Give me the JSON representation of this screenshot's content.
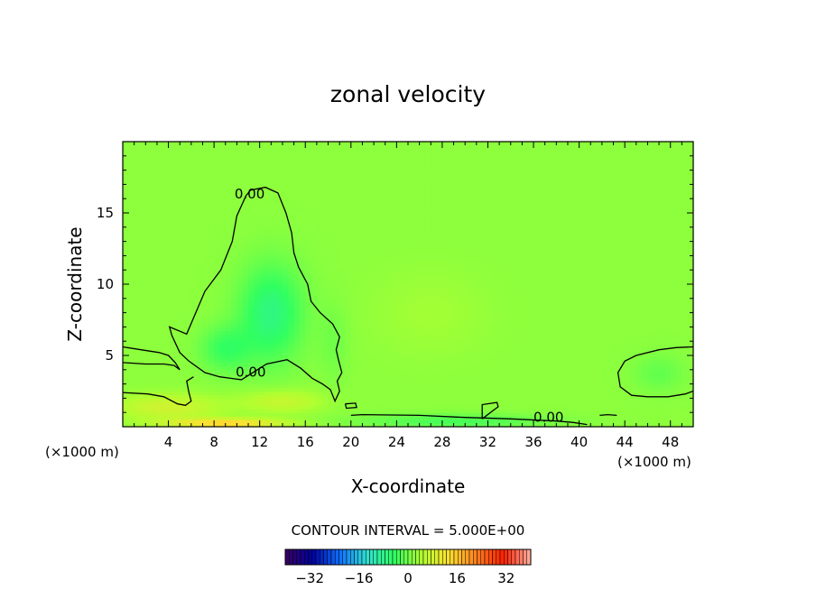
{
  "chart_data": {
    "type": "heatmap",
    "title": "zonal velocity",
    "xlabel": "X-coordinate",
    "ylabel": "Z-coordinate",
    "x_unit_left": "(×1000 m)",
    "x_unit_right": "(×1000 m)",
    "xlim": [
      0,
      50
    ],
    "ylim": [
      0,
      20
    ],
    "x_ticks": [
      4,
      8,
      12,
      16,
      20,
      24,
      28,
      32,
      36,
      40,
      44,
      48
    ],
    "y_ticks": [
      5,
      10,
      15
    ],
    "field_range": [
      -40,
      40
    ],
    "background_value": 2,
    "colorbar": {
      "ticks": [
        -32,
        -16,
        0,
        16,
        32
      ],
      "min": -40,
      "max": 40,
      "stops": [
        "#3a0060",
        "#0000a0",
        "#1070ff",
        "#30e0d0",
        "#30ff60",
        "#b0ff30",
        "#ffe030",
        "#ff8020",
        "#ff2000",
        "#ffb0a0"
      ]
    },
    "contour_interval_label": "CONTOUR INTERVAL = 5.000E+00",
    "contour_labels": [
      {
        "text": "0.00",
        "x": 9.8,
        "y": 16.0
      },
      {
        "text": "0.00",
        "x": 9.9,
        "y": 3.5
      },
      {
        "text": "0.00",
        "x": 36.0,
        "y": 0.35
      }
    ],
    "zero_contours": [
      [
        [
          10.8,
          16.2
        ],
        [
          11.2,
          16.6
        ],
        [
          12.5,
          16.8
        ],
        [
          13.6,
          16.4
        ],
        [
          14.3,
          15.0
        ],
        [
          14.8,
          13.6
        ],
        [
          15.0,
          12.2
        ],
        [
          15.4,
          11.2
        ],
        [
          16.2,
          10.0
        ],
        [
          16.5,
          8.8
        ],
        [
          17.3,
          8.0
        ],
        [
          18.4,
          7.2
        ],
        [
          19.0,
          6.3
        ],
        [
          18.7,
          5.4
        ],
        [
          18.9,
          4.7
        ],
        [
          19.2,
          3.8
        ],
        [
          18.8,
          3.2
        ],
        [
          19.0,
          2.5
        ],
        [
          18.6,
          1.8
        ],
        [
          18.2,
          2.6
        ],
        [
          17.5,
          3.0
        ],
        [
          16.6,
          3.4
        ],
        [
          15.6,
          4.1
        ],
        [
          14.4,
          4.7
        ],
        [
          12.6,
          4.4
        ],
        [
          10.4,
          3.3
        ],
        [
          8.5,
          3.5
        ],
        [
          7.2,
          3.8
        ],
        [
          5.8,
          4.6
        ],
        [
          5.0,
          5.2
        ],
        [
          4.3,
          6.4
        ],
        [
          4.1,
          7.0
        ],
        [
          5.6,
          6.5
        ],
        [
          7.2,
          9.5
        ],
        [
          8.6,
          11.0
        ],
        [
          9.6,
          13.0
        ],
        [
          10.0,
          14.8
        ],
        [
          10.8,
          16.2
        ]
      ],
      [
        [
          0.0,
          5.6
        ],
        [
          1.6,
          5.4
        ],
        [
          3.2,
          5.2
        ],
        [
          4.0,
          5.0
        ],
        [
          4.6,
          4.5
        ],
        [
          5.0,
          4.0
        ],
        [
          4.5,
          4.3
        ],
        [
          3.6,
          4.4
        ],
        [
          2.0,
          4.4
        ],
        [
          0.0,
          4.5
        ]
      ],
      [
        [
          0.0,
          2.4
        ],
        [
          2.2,
          2.3
        ],
        [
          3.6,
          2.1
        ],
        [
          4.8,
          1.6
        ],
        [
          5.5,
          1.5
        ],
        [
          6.0,
          1.8
        ],
        [
          5.8,
          2.4
        ],
        [
          5.6,
          3.2
        ],
        [
          6.2,
          3.5
        ]
      ],
      [
        [
          20.0,
          0.8
        ],
        [
          21.0,
          0.85
        ],
        [
          26.0,
          0.8
        ],
        [
          30.0,
          0.65
        ],
        [
          34.0,
          0.55
        ],
        [
          38.0,
          0.4
        ],
        [
          39.5,
          0.3
        ],
        [
          40.7,
          0.15
        ]
      ],
      [
        [
          50.0,
          5.6
        ],
        [
          48.5,
          5.55
        ],
        [
          47.0,
          5.4
        ],
        [
          45.0,
          5.0
        ],
        [
          44.0,
          4.6
        ],
        [
          43.4,
          3.8
        ],
        [
          43.6,
          2.8
        ],
        [
          44.6,
          2.2
        ],
        [
          46.0,
          2.1
        ],
        [
          47.8,
          2.1
        ],
        [
          49.3,
          2.3
        ],
        [
          50.0,
          2.5
        ]
      ],
      [
        [
          31.5,
          0.55
        ],
        [
          31.5,
          1.55
        ],
        [
          32.8,
          1.7
        ],
        [
          32.9,
          1.4
        ],
        [
          32.4,
          1.1
        ],
        [
          31.5,
          0.55
        ]
      ],
      [
        [
          19.5,
          1.6
        ],
        [
          19.6,
          1.3
        ],
        [
          20.5,
          1.35
        ],
        [
          20.4,
          1.65
        ],
        [
          19.5,
          1.6
        ]
      ],
      [
        [
          41.8,
          0.8
        ],
        [
          42.5,
          0.85
        ],
        [
          43.3,
          0.8
        ]
      ]
    ],
    "field_blobs": [
      {
        "x": 13.0,
        "y": 8.0,
        "sx": 2.8,
        "sy": 3.4,
        "value": -9
      },
      {
        "x": 9.0,
        "y": 5.5,
        "sx": 2.2,
        "sy": 1.6,
        "value": -6
      },
      {
        "x": 18.5,
        "y": 6.0,
        "sx": 1.3,
        "sy": 2.8,
        "value": -2
      },
      {
        "x": 47.0,
        "y": 3.8,
        "sx": 2.2,
        "sy": 1.3,
        "value": -3
      },
      {
        "x": 27.0,
        "y": 8.0,
        "sx": 5.0,
        "sy": 3.0,
        "value": 1.5
      },
      {
        "x": 29.0,
        "y": 0.4,
        "sx": 8.0,
        "sy": 0.5,
        "value": -5
      },
      {
        "x": 4.0,
        "y": 1.4,
        "sx": 4.5,
        "sy": 0.9,
        "value": 6
      },
      {
        "x": 14.0,
        "y": 1.8,
        "sx": 3.5,
        "sy": 0.8,
        "value": 5
      },
      {
        "x": 9.0,
        "y": 0.25,
        "sx": 5.0,
        "sy": 0.35,
        "value": 13
      }
    ]
  }
}
